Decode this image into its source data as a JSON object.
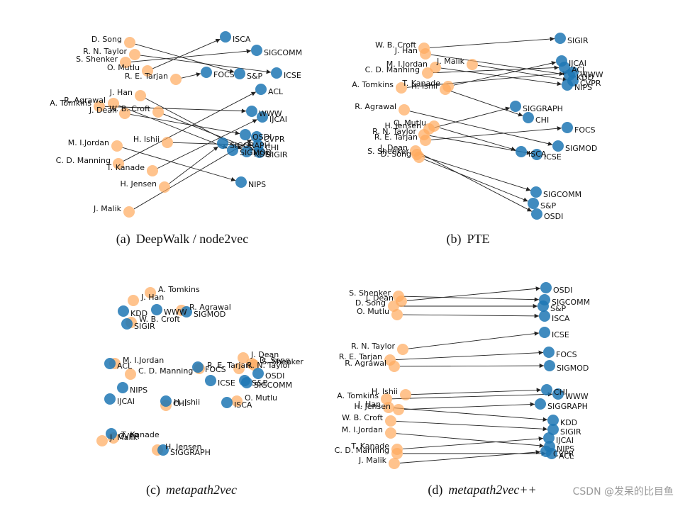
{
  "panels": [
    {
      "caption": {
        "tag": "(a)",
        "method": "DeepWalk / node2vec"
      },
      "authors": [
        "D. Song",
        "S. Shenker",
        "J. Dean",
        "O. Mutlu",
        "R. N. Taylor",
        "R. E. Tarjan",
        "R. Agrawal",
        "H. Ishii",
        "A. Tomkins",
        "J. Han",
        "H. Jensen",
        "W. B. Croft",
        "M. I.Jordan",
        "T. Kanade",
        "C. D. Manning",
        "J. Malik"
      ],
      "venues": [
        "S&P",
        "SIGCOMM",
        "OSDI",
        "ISCA",
        "ICSE",
        "FOCS",
        "SIGMOD",
        "CHI",
        "WWW",
        "KDD",
        "SIGGRAPH",
        "SIGIR",
        "NIPS",
        "IJCAI",
        "ACL",
        "CVPR"
      ]
    },
    {
      "caption": {
        "tag": "(b)",
        "method": "PTE"
      },
      "authors": [
        "D. Song",
        "S. Shenker",
        "J. Dean",
        "O. Mutlu",
        "R. N. Taylor",
        "R. E. Tarjan",
        "R. Agrawal",
        "H. Ishii",
        "A. Tomkins",
        "J. Han",
        "H. Jensen",
        "W. B. Croft",
        "M. I.Jordan",
        "T. Kanade",
        "C. D. Manning",
        "J. Malik"
      ],
      "venues": [
        "S&P",
        "SIGCOMM",
        "OSDI",
        "ISCA",
        "ICSE",
        "FOCS",
        "SIGMOD",
        "CHI",
        "WWW",
        "KDD",
        "SIGGRAPH",
        "SIGIR",
        "NIPS",
        "IJCAI",
        "ACL",
        "CVPR"
      ]
    },
    {
      "caption": {
        "tag": "(c)",
        "method": "metapath2vec"
      },
      "authors": [
        "D. Song",
        "S. Shenker",
        "J. Dean",
        "O. Mutlu",
        "R. N. Taylor",
        "R. E. Tarjan",
        "R. Agrawal",
        "H. Ishii",
        "A. Tomkins",
        "J. Han",
        "H. Jensen",
        "W. B. Croft",
        "M. I.Jordan",
        "T. Kanade",
        "C. D. Manning",
        "J. Malik"
      ],
      "venues": [
        "S&P",
        "SIGCOMM",
        "OSDI",
        "ISCA",
        "ICSE",
        "FOCS",
        "SIGMOD",
        "CHI",
        "WWW",
        "KDD",
        "SIGGRAPH",
        "SIGIR",
        "NIPS",
        "IJCAI",
        "ACL",
        "CVPR"
      ]
    },
    {
      "caption": {
        "tag": "(d)",
        "method": "metapath2vec++"
      },
      "authors": [
        "D. Song",
        "S. Shenker",
        "J. Dean",
        "O. Mutlu",
        "R. N. Taylor",
        "R. E. Tarjan",
        "R. Agrawal",
        "H. Ishii",
        "A. Tomkins",
        "J. Han",
        "H. Jensen",
        "W. B. Croft",
        "M. I.Jordan",
        "T. Kanade",
        "C. D. Manning",
        "J. Malik"
      ],
      "venues": [
        "S&P",
        "SIGCOMM",
        "OSDI",
        "ISCA",
        "ICSE",
        "FOCS",
        "SIGMOD",
        "CHI",
        "WWW",
        "KDD",
        "SIGGRAPH",
        "SIGIR",
        "NIPS",
        "IJCAI",
        "ACL",
        "CVPR"
      ]
    }
  ],
  "watermark": "CSDN @发呆的比目鱼"
}
